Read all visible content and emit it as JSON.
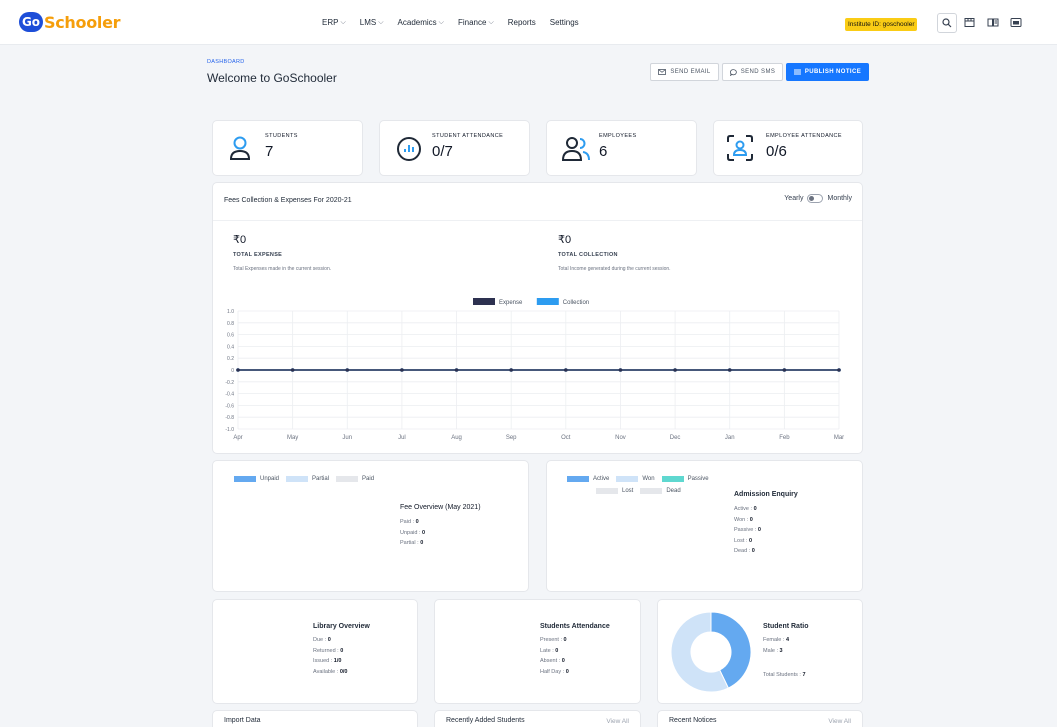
{
  "brand": {
    "mark": "Go",
    "name": "Schooler"
  },
  "nav": [
    {
      "label": "ERP",
      "dropdown": true
    },
    {
      "label": "LMS",
      "dropdown": true
    },
    {
      "label": "Academics",
      "dropdown": true
    },
    {
      "label": "Finance",
      "dropdown": true
    },
    {
      "label": "Reports",
      "dropdown": false
    },
    {
      "label": "Settings",
      "dropdown": false
    }
  ],
  "institute_badge": "Institute ID: goschooler",
  "header": {
    "breadcrumb": "DASHBOARD",
    "title": "Welcome to GoSchooler",
    "send_email": "SEND EMAIL",
    "send_sms": "SEND SMS",
    "publish_notice": "PUBLISH NOTICE"
  },
  "stats": [
    {
      "label": "STUDENTS",
      "value": "7",
      "icon": "user-icon"
    },
    {
      "label": "STUDENT ATTENDANCE",
      "value": "0/7",
      "icon": "bar-chart-icon"
    },
    {
      "label": "EMPLOYEES",
      "value": "6",
      "icon": "users-icon"
    },
    {
      "label": "EMPLOYEE ATTENDANCE",
      "value": "0/6",
      "icon": "face-scan-icon"
    }
  ],
  "fees": {
    "title": "Fees Collection & Expenses For 2020-21",
    "toggle_left": "Yearly",
    "toggle_right": "Monthly",
    "expense_amount": "₹0",
    "expense_label": "TOTAL EXPENSE",
    "expense_desc": "Total Expenses made in the current session.",
    "collection_amount": "₹0",
    "collection_label": "TOTAL COLLECTION",
    "collection_desc": "Total Income generated during the current session."
  },
  "chart_data": {
    "type": "line",
    "x": [
      "Apr",
      "May",
      "Jun",
      "Jul",
      "Aug",
      "Sep",
      "Oct",
      "Nov",
      "Dec",
      "Jan",
      "Feb",
      "Mar"
    ],
    "series": [
      {
        "name": "Expense",
        "color": "#2d3150",
        "values": [
          0,
          0,
          0,
          0,
          0,
          0,
          0,
          0,
          0,
          0,
          0,
          0
        ]
      },
      {
        "name": "Collection",
        "color": "#2d9cf0",
        "values": [
          0,
          0,
          0,
          0,
          0,
          0,
          0,
          0,
          0,
          0,
          0,
          0
        ]
      }
    ],
    "yticks": [
      "1.0",
      "0.8",
      "0.6",
      "0.4",
      "0.2",
      "0",
      "-0.2",
      "-0.4",
      "-0.6",
      "-0.8",
      "-1.0"
    ],
    "ylim": [
      -1,
      1
    ],
    "legend": "top-center",
    "grid": true
  },
  "fee_overview": {
    "legend": [
      {
        "label": "Unpaid",
        "color": "#64a9f0"
      },
      {
        "label": "Partial",
        "color": "#cfe3f8"
      },
      {
        "label": "Paid",
        "color": "#e5e7eb"
      }
    ],
    "title": "Fee Overview (May 2021)",
    "rows": [
      {
        "k": "Paid : ",
        "v": "0"
      },
      {
        "k": "Unpaid : ",
        "v": "0"
      },
      {
        "k": "Partial : ",
        "v": "0"
      }
    ]
  },
  "admission": {
    "legend": [
      {
        "label": "Active",
        "color": "#64a9f0"
      },
      {
        "label": "Won",
        "color": "#cfe3f8"
      },
      {
        "label": "Passive",
        "color": "#5fd8d0"
      },
      {
        "label": "Lost",
        "color": "#e5e7eb"
      },
      {
        "label": "Dead",
        "color": "#e5e7eb"
      }
    ],
    "title": "Admission Enquiry",
    "rows": [
      {
        "k": "Active : ",
        "v": "0"
      },
      {
        "k": "Won : ",
        "v": "0"
      },
      {
        "k": "Passive : ",
        "v": "0"
      },
      {
        "k": "Lost : ",
        "v": "0"
      },
      {
        "k": "Dead : ",
        "v": "0"
      }
    ]
  },
  "library": {
    "title": "Library Overview",
    "rows": [
      {
        "k": "Due : ",
        "v": "0"
      },
      {
        "k": "Returned : ",
        "v": "0"
      },
      {
        "k": "Issued : ",
        "v": "1/0"
      },
      {
        "k": "Available : ",
        "v": "0/0"
      }
    ]
  },
  "students_attendance": {
    "title": "Students Attendance",
    "rows": [
      {
        "k": "Present : ",
        "v": "0"
      },
      {
        "k": "Late : ",
        "v": "0"
      },
      {
        "k": "Absent : ",
        "v": "0"
      },
      {
        "k": "Half Day : ",
        "v": "0"
      }
    ]
  },
  "ratio": {
    "title": "Student Ratio",
    "female_k": "Female : ",
    "female_v": "4",
    "male_k": "Male : ",
    "male_v": "3",
    "total_k": "Total Students : ",
    "total_v": "7",
    "female": 4,
    "male": 3,
    "colors": {
      "female": "#cfe3f8",
      "male": "#64a9f0"
    }
  },
  "bottom": {
    "import_title": "Import Data",
    "recent_students_title": "Recently Added Students",
    "recent_notices_title": "Recent Notices",
    "view_all": "View All"
  }
}
